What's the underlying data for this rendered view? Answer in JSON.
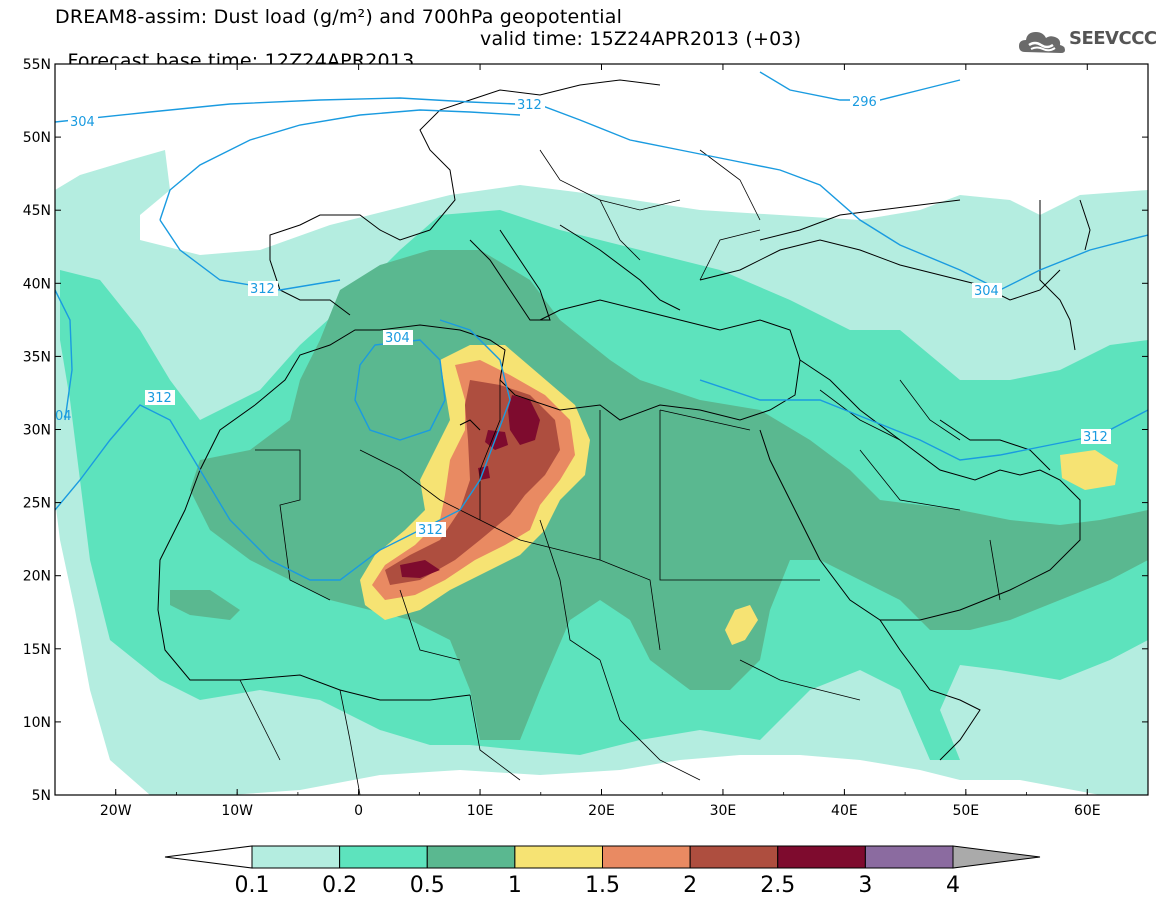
{
  "header": {
    "title_line1": "DREAM8-assim: Dust load (g/m²) and 700hPa geopotential",
    "title_line2_base": "Forecast base time: 12Z24APR2013",
    "title_line2_valid": "valid time: 15Z24APR2013 (+03)",
    "logo_text": "SEEVCCC",
    "logo_icon": "cloud-icon"
  },
  "map": {
    "lon_range": [
      -25,
      65
    ],
    "lat_range": [
      5,
      55
    ],
    "lat_labels": [
      "55N",
      "50N",
      "45N",
      "40N",
      "35N",
      "30N",
      "25N",
      "20N",
      "15N",
      "10N",
      "5N"
    ],
    "lon_labels": [
      "20W",
      "10W",
      "0",
      "10E",
      "20E",
      "30E",
      "40E",
      "50E",
      "60E"
    ],
    "contour_line_color": "#1a9be0",
    "contour_labels": [
      "304",
      "312",
      "296",
      "312",
      "304",
      "304",
      "312",
      "312",
      "312",
      "04"
    ]
  },
  "colorbar": {
    "colors": [
      "#ffffff",
      "#b4ede0",
      "#5de3bd",
      "#5ab890",
      "#f6e373",
      "#e98a62",
      "#ae4e3f",
      "#7e0b2e",
      "#8b6ba0",
      "#aaaaaa"
    ],
    "labels": [
      "0.1",
      "0.2",
      "0.5",
      "1",
      "1.5",
      "2",
      "2.5",
      "3",
      "4"
    ]
  }
}
